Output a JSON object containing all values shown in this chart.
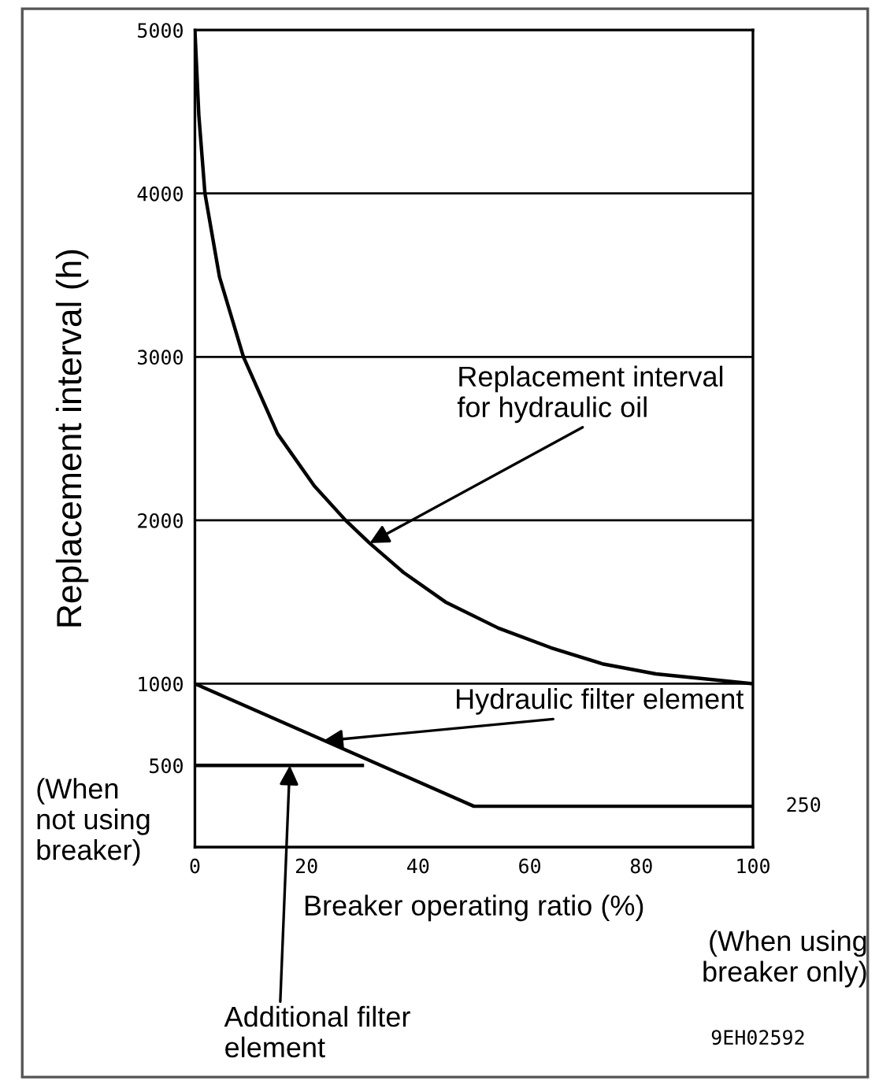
{
  "chart_data": {
    "type": "line",
    "xlabel": "Breaker operating ratio (%)",
    "ylabel": "Replacement interval (h)",
    "xlim": [
      0,
      100
    ],
    "xticks": [
      0,
      20,
      40,
      60,
      80,
      100
    ],
    "ylim": [
      0,
      5000
    ],
    "yticks": [
      500,
      1000,
      2000,
      3000,
      4000,
      5000
    ],
    "grid": false,
    "legend": false,
    "marker": "none",
    "line_style": "solid",
    "series": [
      {
        "color": "#000000",
        "x": [
          0,
          0.7,
          1.8,
          4.4,
          8.7,
          14.8,
          21.4,
          27,
          31.3,
          37.4,
          44.9,
          54.4,
          63.8,
          73.2,
          82.6,
          100
        ],
        "values": [
          5000,
          4480,
          4000,
          3490,
          3000,
          2530,
          2210,
          2000,
          1860,
          1680,
          1500,
          1340,
          1220,
          1120,
          1060,
          1000
        ]
      },
      {
        "color": "#000000",
        "x": [
          0,
          50,
          100
        ],
        "values": [
          1000,
          250,
          250
        ]
      },
      {
        "color": "#000000",
        "x": [
          0,
          30
        ],
        "values": [
          500,
          500
        ]
      }
    ],
    "ref_lines": [
      {
        "axis": "y",
        "value": 1000
      },
      {
        "axis": "y",
        "value": 2000
      },
      {
        "axis": "y",
        "value": 3000
      },
      {
        "axis": "y",
        "value": 4000
      }
    ],
    "annotations": [
      {
        "text": "Replacement interval\nfor hydraulic oil",
        "x": 31.3,
        "y": 1860
      },
      {
        "text": "Hydraulic filter element",
        "x": 23,
        "y": 650
      },
      {
        "text": "Additional filter\nelement",
        "x": 17,
        "y": 500
      },
      {
        "text": "250",
        "x": 100,
        "y": 250
      },
      "(When\nnot using\nbreaker)",
      "(When using\nbreaker only)",
      "9EH02592"
    ]
  }
}
